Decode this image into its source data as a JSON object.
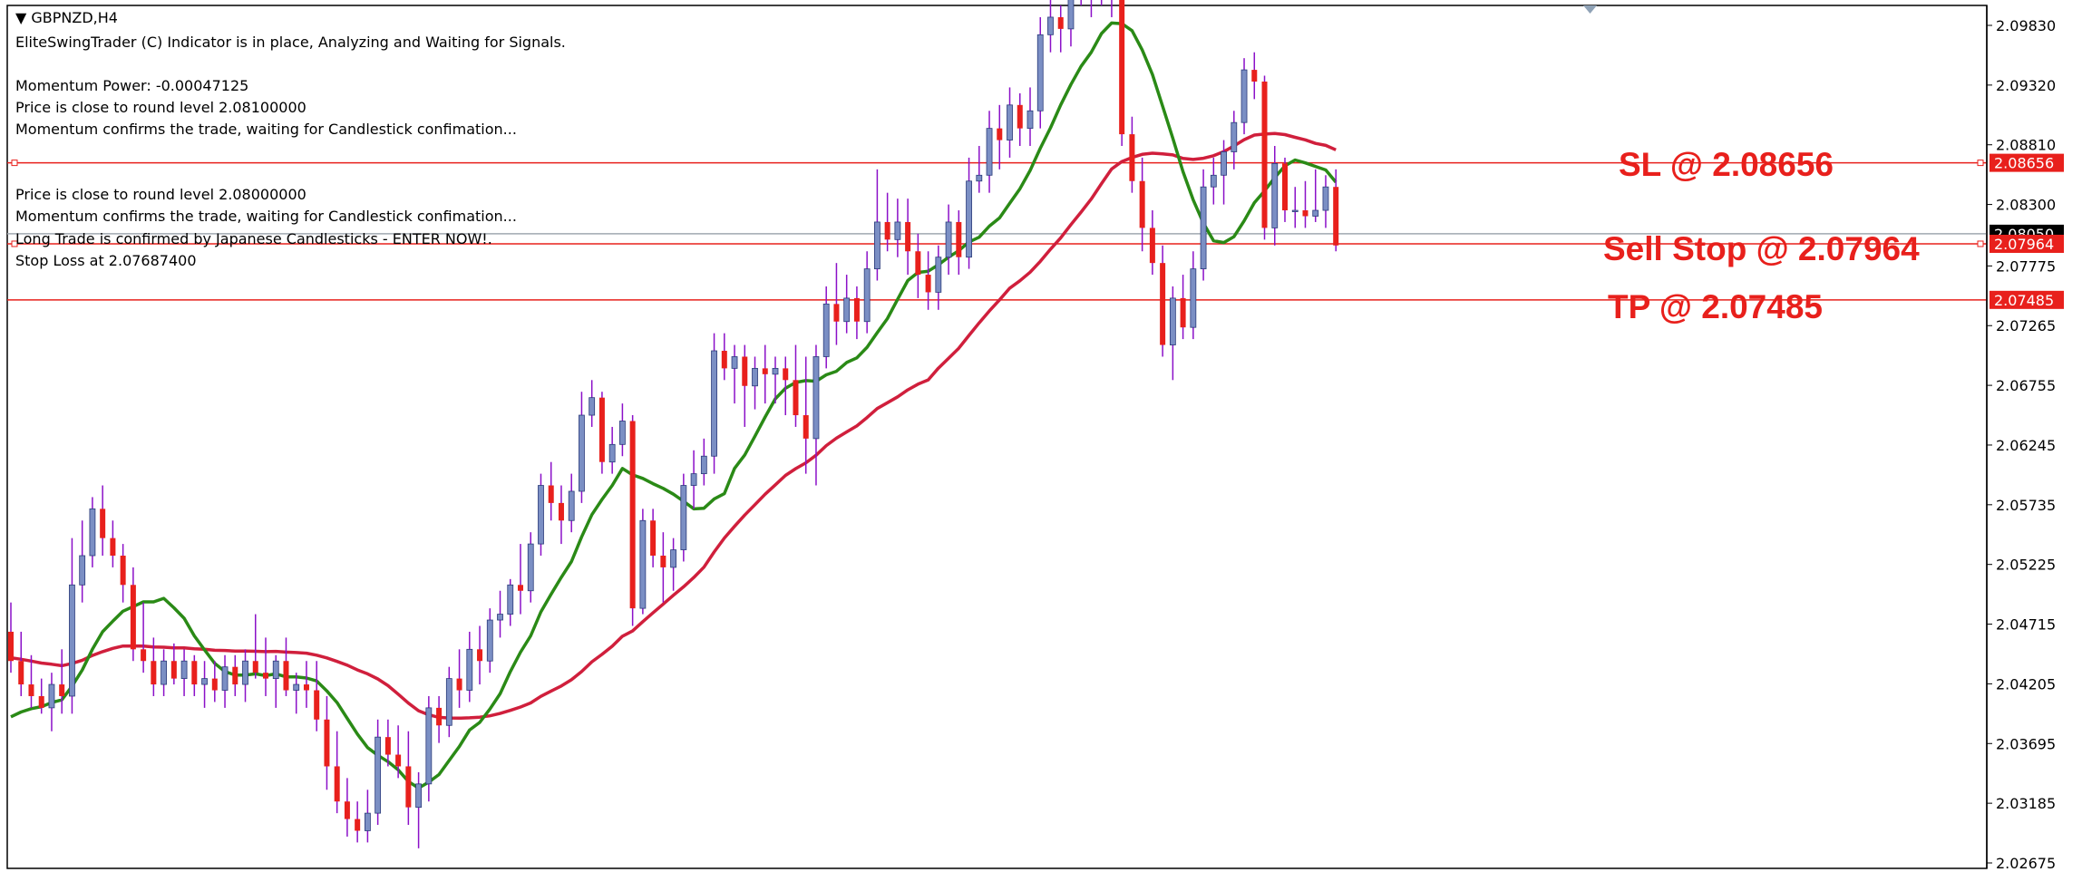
{
  "header": {
    "symbol": "GBPNZD,H4",
    "line1": "EliteSwingTrader (C) Indicator is in place, Analyzing and Waiting for Signals.",
    "line2": "Momentum Power: -0.00047125",
    "line3": "Price is close to round level 2.08100000",
    "line4": "Momentum confirms the trade, waiting for Candlestick confimation...",
    "line5": "Price is close to round level 2.08000000",
    "line6": "Momentum confirms the trade, waiting for Candlestick confimation...",
    "line7": "Long Trade is confirmed by Japanese Candlesticks - ENTER NOW!.",
    "line8": "Stop Loss at 2.07687400"
  },
  "levels": {
    "sl": {
      "label": "SL @ 2.08656",
      "tag": "2.08656",
      "price": 2.08656
    },
    "sell_stop": {
      "label": "Sell Stop @ 2.07964",
      "tag": "2.07964",
      "price": 2.07964
    },
    "tp": {
      "label": "TP @ 2.07485",
      "tag": "2.07485",
      "price": 2.07485
    },
    "bid_tag": "2.08050",
    "bid_price": 2.0805
  },
  "colors": {
    "bull": "#7b8fc4",
    "bear": "#e8201c",
    "wick": "#8b10c8",
    "ma_fast": "#2a8a16",
    "ma_slow": "#d01f3c",
    "level_line": "#e8201c",
    "bid_line": "#a0a8b0"
  },
  "chart_data": {
    "type": "candlestick",
    "symbol": "GBPNZD",
    "timeframe": "H4",
    "ylim": [
      2.02675,
      2.0983
    ],
    "y_ticks": [
      "2.09830",
      "2.09320",
      "2.08810",
      "2.08300",
      "2.07775",
      "2.07265",
      "2.06755",
      "2.06245",
      "2.05735",
      "2.05225",
      "2.04715",
      "2.04205",
      "2.03695",
      "2.03185",
      "2.02675"
    ],
    "candles": [
      [
        2.0465,
        2.049,
        2.043,
        2.044
      ],
      [
        2.044,
        2.0465,
        2.041,
        2.042
      ],
      [
        2.042,
        2.0445,
        2.04,
        2.041
      ],
      [
        2.041,
        2.0425,
        2.0395,
        2.04
      ],
      [
        2.04,
        2.043,
        2.038,
        2.042
      ],
      [
        2.042,
        2.045,
        2.0395,
        2.041
      ],
      [
        2.041,
        2.0545,
        2.0395,
        2.0505
      ],
      [
        2.0505,
        2.056,
        2.049,
        2.053
      ],
      [
        2.053,
        2.058,
        2.052,
        2.057
      ],
      [
        2.057,
        2.059,
        2.053,
        2.0545
      ],
      [
        2.0545,
        2.056,
        2.052,
        2.053
      ],
      [
        2.053,
        2.054,
        2.049,
        2.0505
      ],
      [
        2.0505,
        2.052,
        2.044,
        2.045
      ],
      [
        2.045,
        2.049,
        2.043,
        2.044
      ],
      [
        2.044,
        2.046,
        2.041,
        2.042
      ],
      [
        2.042,
        2.045,
        2.041,
        2.044
      ],
      [
        2.044,
        2.0455,
        2.042,
        2.0425
      ],
      [
        2.0425,
        2.045,
        2.041,
        2.044
      ],
      [
        2.044,
        2.0445,
        2.041,
        2.042
      ],
      [
        2.042,
        2.044,
        2.04,
        2.0425
      ],
      [
        2.0425,
        2.044,
        2.0405,
        2.0415
      ],
      [
        2.0415,
        2.0445,
        2.04,
        2.0435
      ],
      [
        2.0435,
        2.0445,
        2.041,
        2.042
      ],
      [
        2.042,
        2.045,
        2.0405,
        2.044
      ],
      [
        2.044,
        2.048,
        2.0425,
        2.043
      ],
      [
        2.043,
        2.046,
        2.041,
        2.0425
      ],
      [
        2.0425,
        2.0445,
        2.04,
        2.044
      ],
      [
        2.044,
        2.046,
        2.041,
        2.0415
      ],
      [
        2.0415,
        2.043,
        2.0395,
        2.042
      ],
      [
        2.042,
        2.044,
        2.04,
        2.0415
      ],
      [
        2.0415,
        2.044,
        2.038,
        2.039
      ],
      [
        2.039,
        2.041,
        2.033,
        2.035
      ],
      [
        2.035,
        2.038,
        2.031,
        2.032
      ],
      [
        2.032,
        2.034,
        2.029,
        2.0305
      ],
      [
        2.0305,
        2.032,
        2.0285,
        2.0295
      ],
      [
        2.0295,
        2.033,
        2.0285,
        2.031
      ],
      [
        2.031,
        2.039,
        2.03,
        2.0375
      ],
      [
        2.0375,
        2.039,
        2.035,
        2.036
      ],
      [
        2.036,
        2.0385,
        2.034,
        2.035
      ],
      [
        2.035,
        2.038,
        2.03,
        2.0315
      ],
      [
        2.0315,
        2.0345,
        2.028,
        2.0335
      ],
      [
        2.0335,
        2.041,
        2.032,
        2.04
      ],
      [
        2.04,
        2.041,
        2.037,
        2.0385
      ],
      [
        2.0385,
        2.0435,
        2.0375,
        2.0425
      ],
      [
        2.0425,
        2.045,
        2.04,
        2.0415
      ],
      [
        2.0415,
        2.0465,
        2.0405,
        2.045
      ],
      [
        2.045,
        2.047,
        2.042,
        2.044
      ],
      [
        2.044,
        2.0485,
        2.043,
        2.0475
      ],
      [
        2.0475,
        2.05,
        2.046,
        2.048
      ],
      [
        2.048,
        2.051,
        2.047,
        2.0505
      ],
      [
        2.0505,
        2.054,
        2.048,
        2.05
      ],
      [
        2.05,
        2.055,
        2.049,
        2.054
      ],
      [
        2.054,
        2.06,
        2.053,
        2.059
      ],
      [
        2.059,
        2.061,
        2.056,
        2.0575
      ],
      [
        2.0575,
        2.059,
        2.054,
        2.056
      ],
      [
        2.056,
        2.06,
        2.055,
        2.0585
      ],
      [
        2.0585,
        2.067,
        2.0575,
        2.065
      ],
      [
        2.065,
        2.068,
        2.064,
        2.0665
      ],
      [
        2.0665,
        2.067,
        2.06,
        2.061
      ],
      [
        2.061,
        2.064,
        2.06,
        2.0625
      ],
      [
        2.0625,
        2.066,
        2.0615,
        2.0645
      ],
      [
        2.0645,
        2.065,
        2.047,
        2.0485
      ],
      [
        2.0485,
        2.057,
        2.048,
        2.056
      ],
      [
        2.056,
        2.057,
        2.052,
        2.053
      ],
      [
        2.053,
        2.055,
        2.049,
        2.052
      ],
      [
        2.052,
        2.0545,
        2.05,
        2.0535
      ],
      [
        2.0535,
        2.06,
        2.0525,
        2.059
      ],
      [
        2.059,
        2.062,
        2.057,
        2.06
      ],
      [
        2.06,
        2.063,
        2.059,
        2.0615
      ],
      [
        2.0615,
        2.072,
        2.06,
        2.0705
      ],
      [
        2.0705,
        2.072,
        2.068,
        2.069
      ],
      [
        2.069,
        2.071,
        2.066,
        2.07
      ],
      [
        2.07,
        2.071,
        2.064,
        2.0675
      ],
      [
        2.0675,
        2.07,
        2.0655,
        2.069
      ],
      [
        2.069,
        2.071,
        2.066,
        2.0685
      ],
      [
        2.0685,
        2.07,
        2.066,
        2.069
      ],
      [
        2.069,
        2.07,
        2.065,
        2.068
      ],
      [
        2.068,
        2.071,
        2.064,
        2.065
      ],
      [
        2.065,
        2.07,
        2.06,
        2.063
      ],
      [
        2.063,
        2.071,
        2.059,
        2.07
      ],
      [
        2.07,
        2.076,
        2.069,
        2.0745
      ],
      [
        2.0745,
        2.078,
        2.071,
        2.073
      ],
      [
        2.073,
        2.077,
        2.072,
        2.075
      ],
      [
        2.075,
        2.076,
        2.0715,
        2.073
      ],
      [
        2.073,
        2.079,
        2.072,
        2.0775
      ],
      [
        2.0775,
        2.086,
        2.0765,
        2.0815
      ],
      [
        2.0815,
        2.084,
        2.079,
        2.08
      ],
      [
        2.08,
        2.0835,
        2.0785,
        2.0815
      ],
      [
        2.0815,
        2.0835,
        2.077,
        2.079
      ],
      [
        2.079,
        2.0805,
        2.075,
        2.077
      ],
      [
        2.077,
        2.079,
        2.074,
        2.0755
      ],
      [
        2.0755,
        2.0795,
        2.074,
        2.0785
      ],
      [
        2.0785,
        2.083,
        2.077,
        2.0815
      ],
      [
        2.0815,
        2.0825,
        2.077,
        2.0785
      ],
      [
        2.0785,
        2.087,
        2.0775,
        2.085
      ],
      [
        2.085,
        2.088,
        2.084,
        2.0855
      ],
      [
        2.0855,
        2.091,
        2.084,
        2.0895
      ],
      [
        2.0895,
        2.0915,
        2.086,
        2.0885
      ],
      [
        2.0885,
        2.093,
        2.087,
        2.0915
      ],
      [
        2.0915,
        2.0925,
        2.088,
        2.0895
      ],
      [
        2.0895,
        2.093,
        2.088,
        2.091
      ],
      [
        2.091,
        2.099,
        2.0895,
        2.0975
      ],
      [
        2.0975,
        2.101,
        2.096,
        2.099
      ],
      [
        2.099,
        2.1,
        2.096,
        2.098
      ],
      [
        2.098,
        2.1035,
        2.0965,
        2.1025
      ],
      [
        2.1025,
        2.104,
        2.1,
        2.101
      ],
      [
        2.101,
        2.105,
        2.099,
        2.1015
      ],
      [
        2.1015,
        2.106,
        2.1,
        2.1045
      ],
      [
        2.1045,
        2.105,
        2.099,
        2.1005
      ],
      [
        2.1005,
        2.1015,
        2.088,
        2.089
      ],
      [
        2.089,
        2.0905,
        2.084,
        2.085
      ],
      [
        2.085,
        2.087,
        2.079,
        2.081
      ],
      [
        2.081,
        2.0825,
        2.077,
        2.078
      ],
      [
        2.078,
        2.0795,
        2.07,
        2.071
      ],
      [
        2.071,
        2.076,
        2.068,
        2.075
      ],
      [
        2.075,
        2.077,
        2.0715,
        2.0725
      ],
      [
        2.0725,
        2.079,
        2.0715,
        2.0775
      ],
      [
        2.0775,
        2.086,
        2.0765,
        2.0845
      ],
      [
        2.0845,
        2.087,
        2.083,
        2.0855
      ],
      [
        2.0855,
        2.0885,
        2.083,
        2.0875
      ],
      [
        2.0875,
        2.091,
        2.086,
        2.09
      ],
      [
        2.09,
        2.0955,
        2.089,
        2.0945
      ],
      [
        2.0945,
        2.096,
        2.092,
        2.0935
      ],
      [
        2.0935,
        2.094,
        2.08,
        2.081
      ],
      [
        2.081,
        2.088,
        2.0795,
        2.0865
      ],
      [
        2.0865,
        2.087,
        2.0815,
        2.0825
      ],
      [
        2.0825,
        2.0845,
        2.081,
        2.0825
      ],
      [
        2.0825,
        2.085,
        2.081,
        2.082
      ],
      [
        2.082,
        2.086,
        2.0815,
        2.0825
      ],
      [
        2.0825,
        2.0855,
        2.081,
        2.0845
      ],
      [
        2.0845,
        2.086,
        2.079,
        2.0795
      ]
    ],
    "ma_fast_period": 10,
    "ma_slow_period": 30,
    "ma_slow_seed": [
      2.0465,
      2.046,
      2.0455,
      2.0452,
      2.045,
      2.0448,
      2.0447,
      2.0447,
      2.0447,
      2.0447,
      2.0447,
      2.0446,
      2.0446,
      2.0445,
      2.0444,
      2.0443,
      2.0442,
      2.0442,
      2.0441,
      2.044,
      2.044,
      2.0439,
      2.0438,
      2.0437,
      2.0436,
      2.0435,
      2.0434,
      2.0433,
      2.0432,
      2.0431
    ],
    "annotations": [
      "SL @ 2.08656",
      "Sell Stop @ 2.07964",
      "TP @ 2.07485"
    ]
  }
}
